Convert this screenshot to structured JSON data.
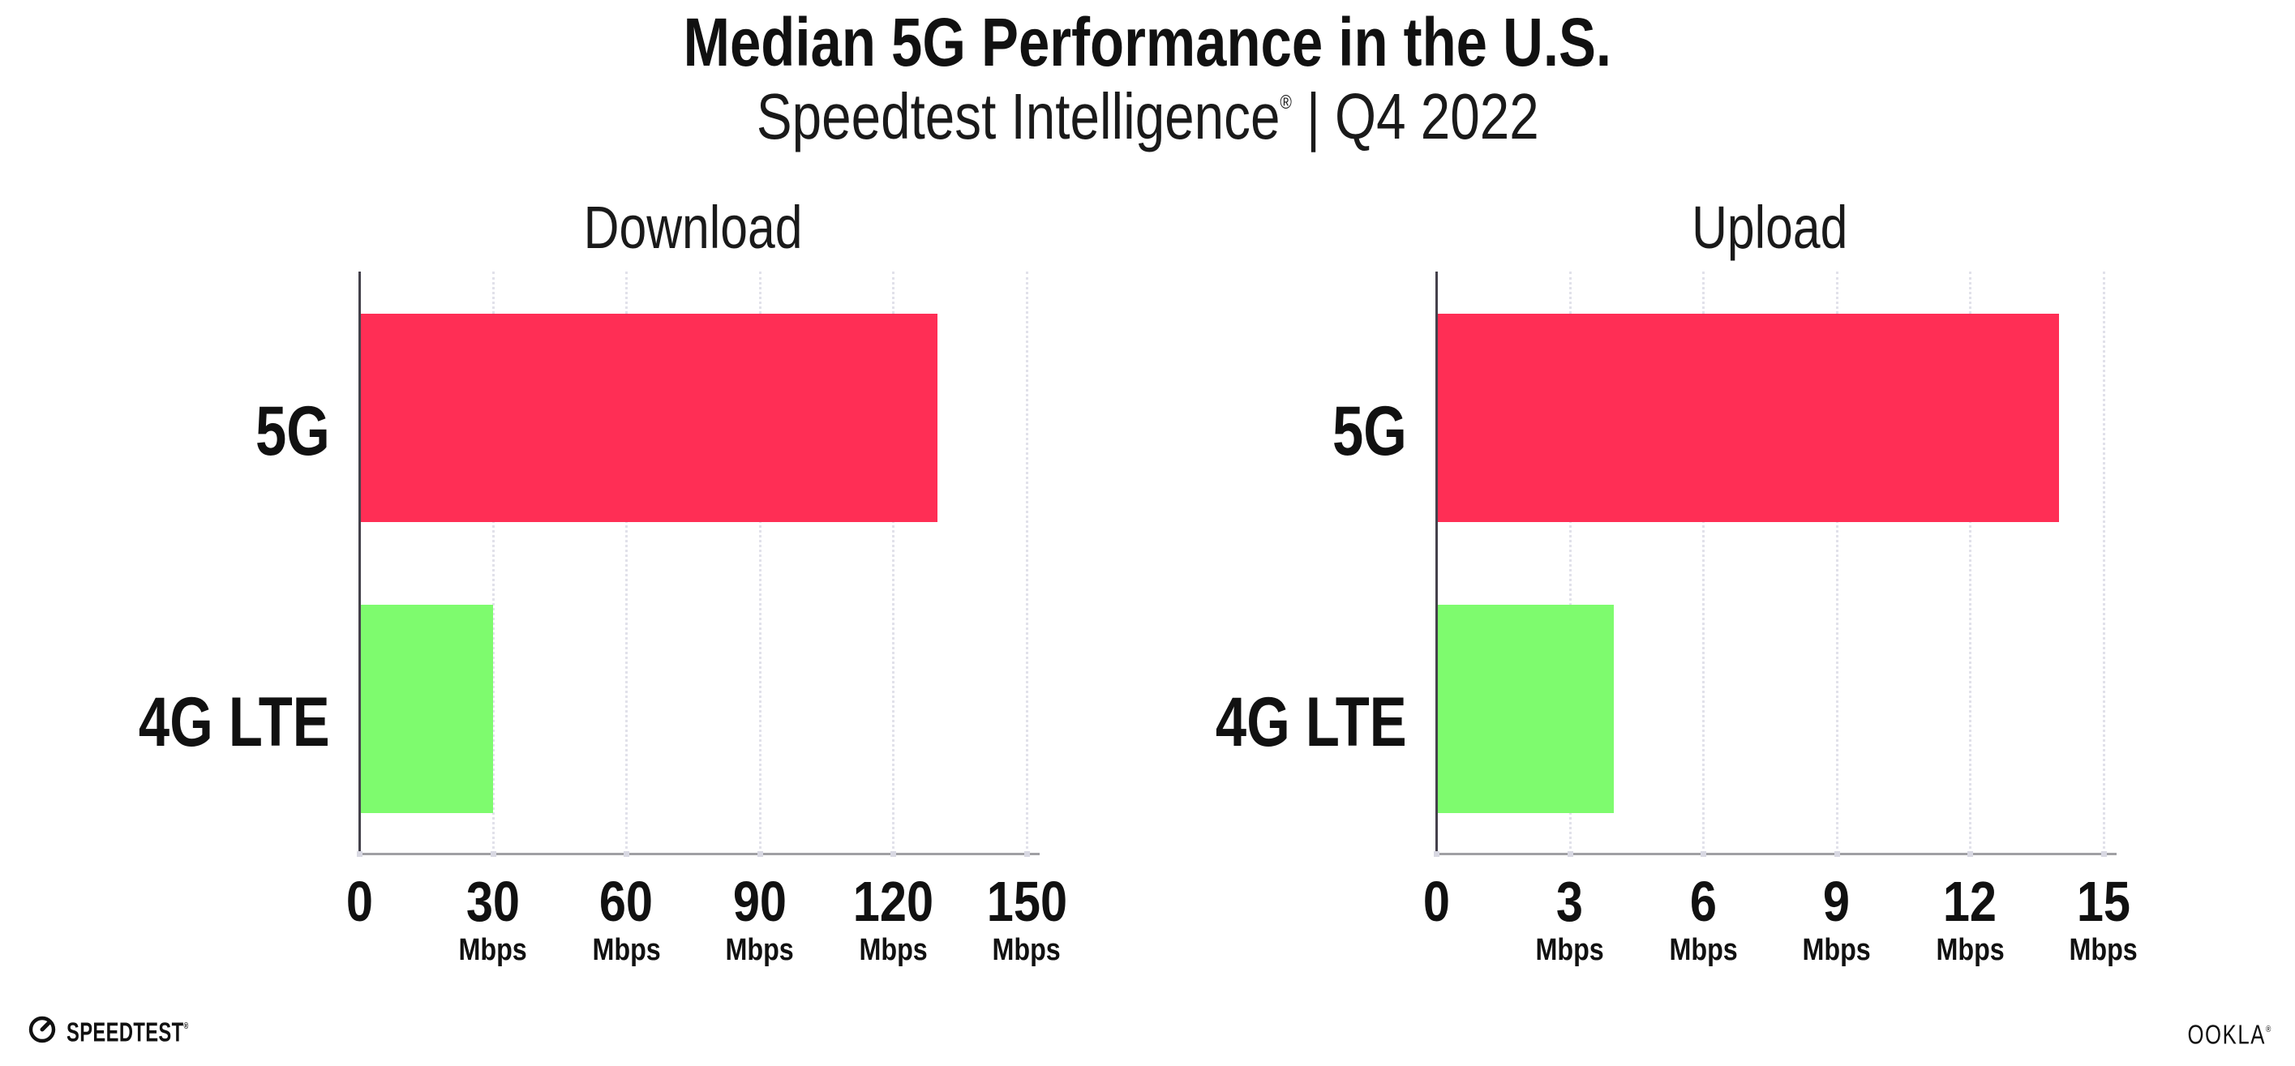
{
  "header": {
    "title": "Median 5G Performance in the U.S.",
    "subtitle_brand": "Speedtest Intelligence",
    "subtitle_reg": "®",
    "subtitle_separator": "|",
    "subtitle_period": "Q4 2022"
  },
  "chart_data": [
    {
      "type": "bar",
      "orientation": "horizontal",
      "title": "Download",
      "categories": [
        "5G",
        "4G LTE"
      ],
      "values": [
        130,
        30
      ],
      "unit": "Mbps",
      "xlim": [
        0,
        150
      ],
      "xticks": [
        0,
        30,
        60,
        90,
        120,
        150
      ],
      "bar_colors": [
        "#ff2e55",
        "#7efb6e"
      ],
      "grid": "dotted-vertical",
      "legend": "none"
    },
    {
      "type": "bar",
      "orientation": "horizontal",
      "title": "Upload",
      "categories": [
        "5G",
        "4G LTE"
      ],
      "values": [
        14,
        4
      ],
      "unit": "Mbps",
      "xlim": [
        0,
        15
      ],
      "xticks": [
        0,
        3,
        6,
        9,
        12,
        15
      ],
      "bar_colors": [
        "#ff2e55",
        "#7efb6e"
      ],
      "grid": "dotted-vertical",
      "legend": "none"
    }
  ],
  "footer": {
    "speedtest_label": "SPEEDTEST",
    "speedtest_reg": "®",
    "ookla_label": "OOKLA",
    "ookla_reg": "®"
  },
  "colors": {
    "bar_5g": "#ff2e55",
    "bar_4g_lte": "#7efb6e",
    "gridline": "#e1e1ea",
    "y_axis_line": "#44414b",
    "x_axis_line": "#a0a0a4",
    "text": "#111111"
  }
}
